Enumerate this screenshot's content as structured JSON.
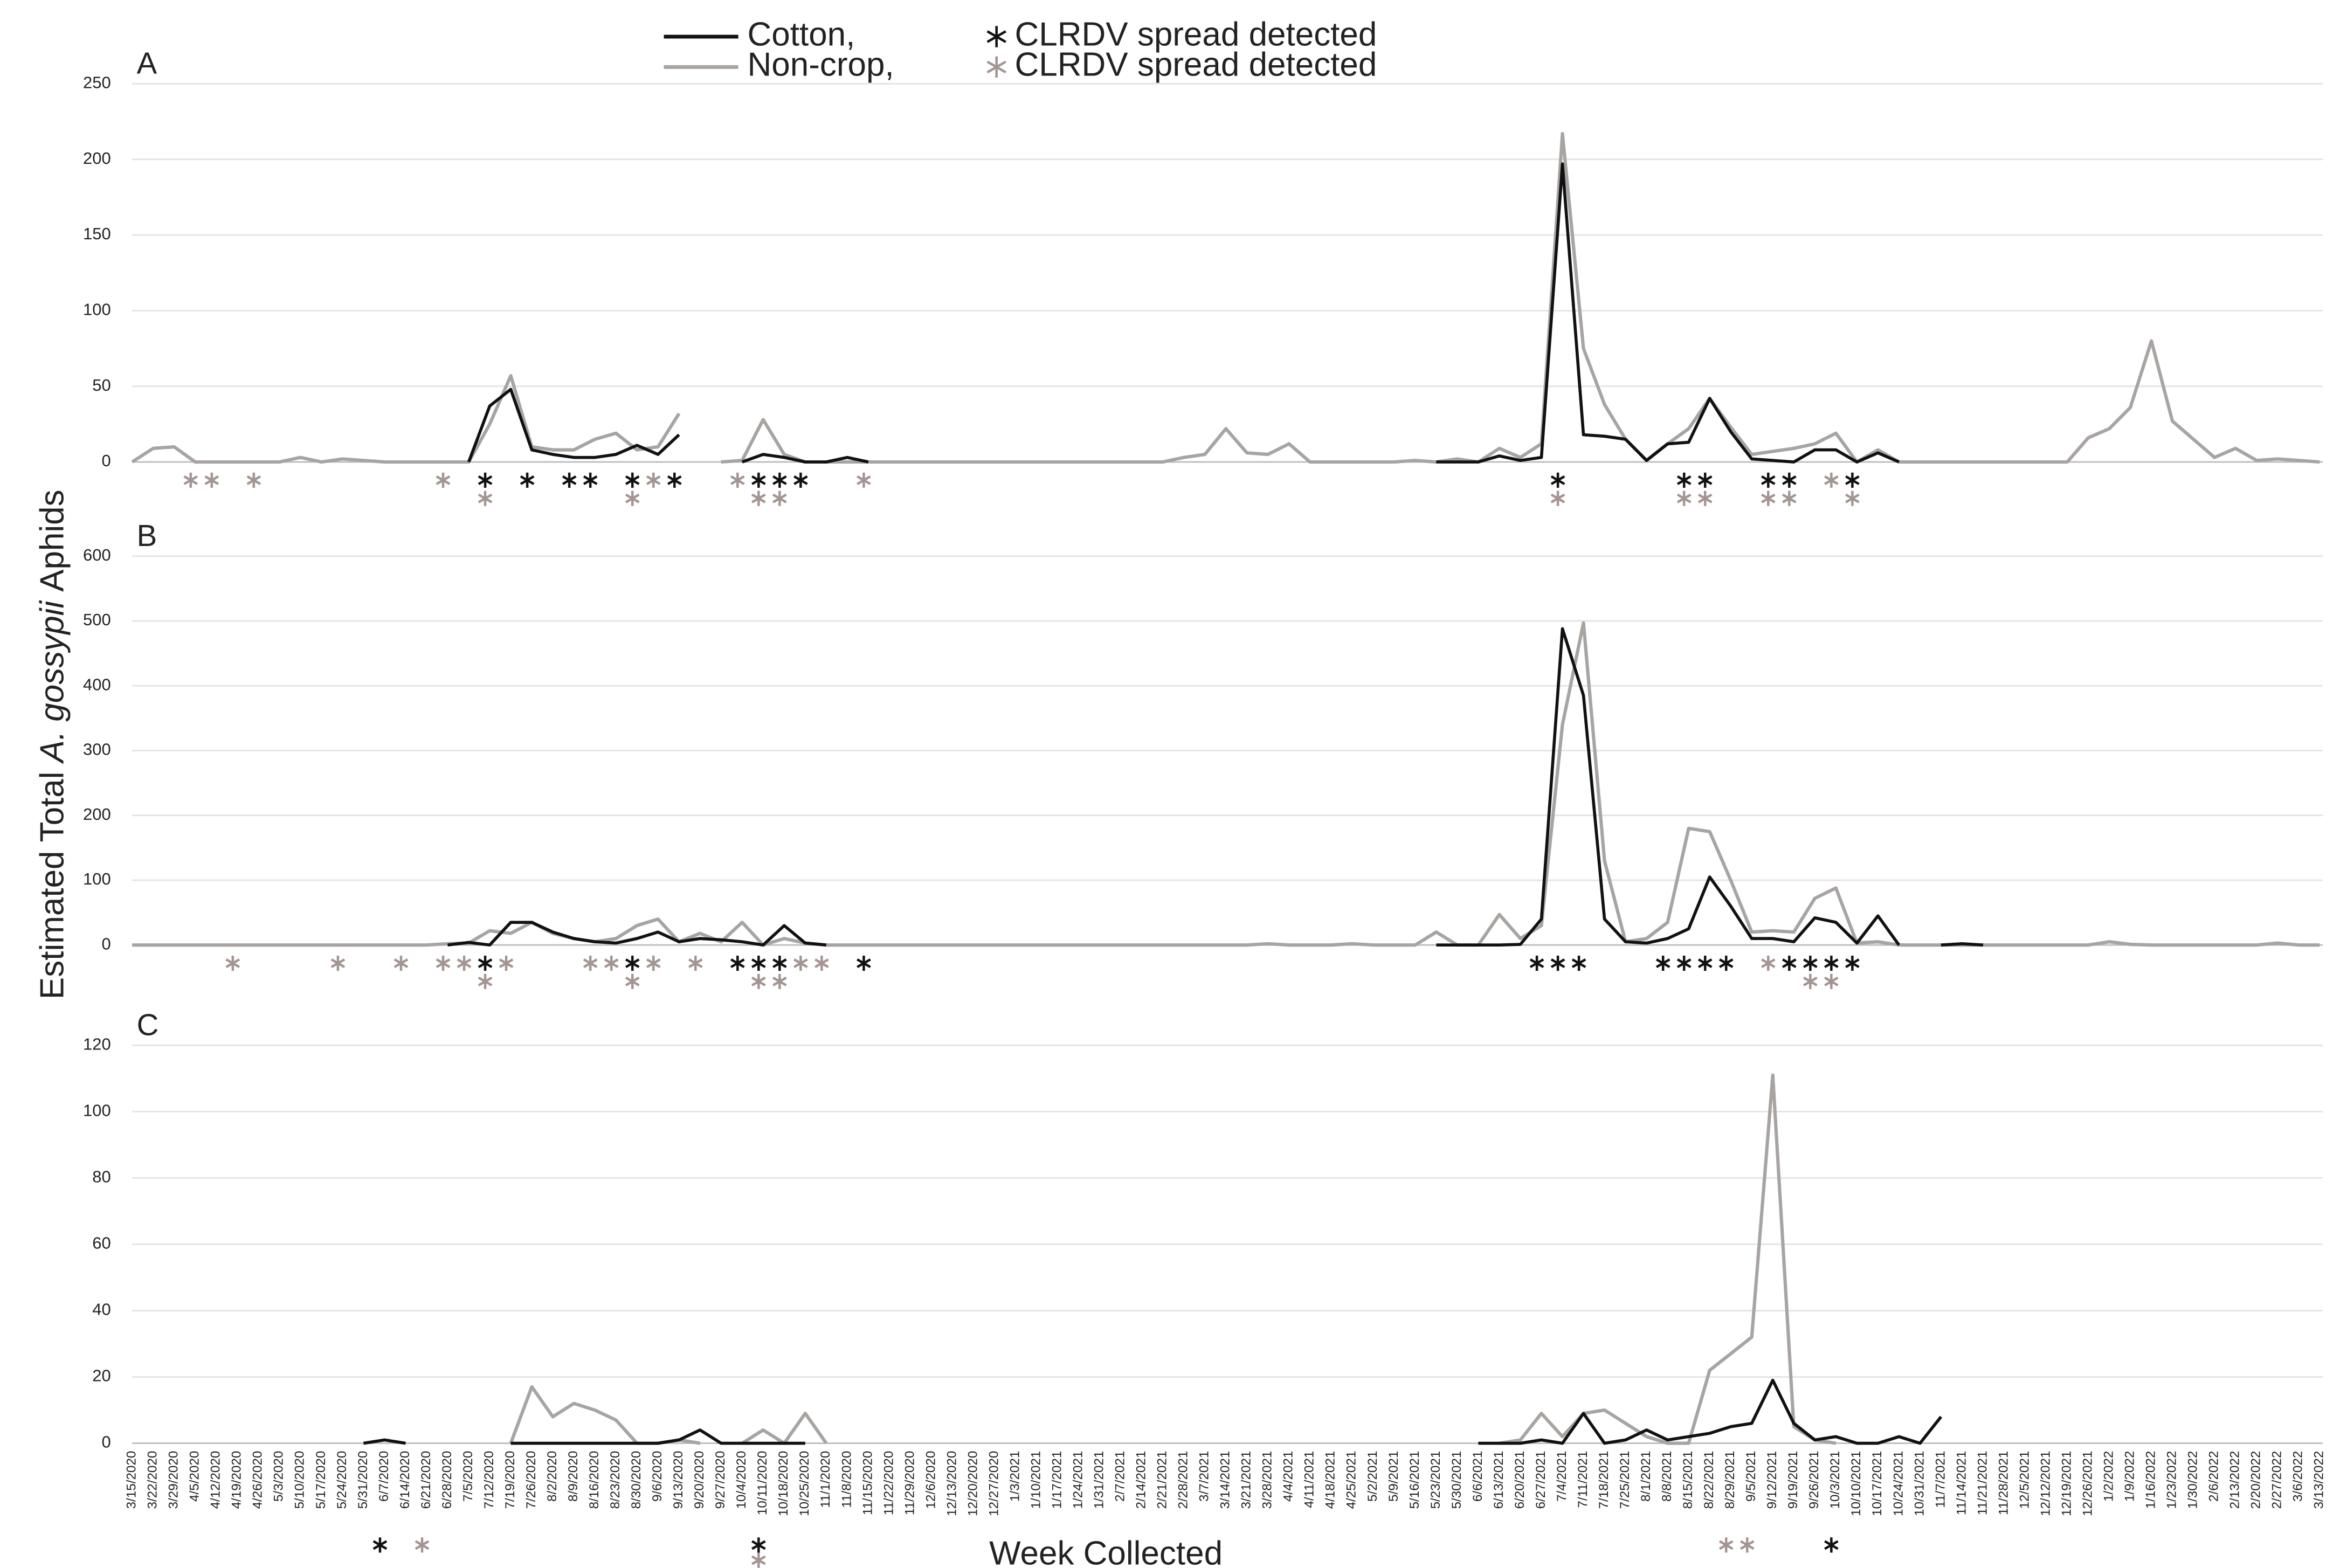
{
  "chart_data": {
    "type": "line",
    "xlabel": "Week Collected",
    "ylabel": [
      "Estimated Total",
      "A. gossypii",
      "Aphids"
    ],
    "spread_label": "CLRDV spread detected",
    "legend": [
      {
        "name": "Cotton,",
        "color": "#111111"
      },
      {
        "name": "Non-crop,",
        "color": "#a8a4a2"
      }
    ],
    "spread_colors": [
      "#111111",
      "#a39592"
    ],
    "grid": true,
    "categories": [
      "3/15/2020",
      "3/22/2020",
      "3/29/2020",
      "4/5/2020",
      "4/12/2020",
      "4/19/2020",
      "4/26/2020",
      "5/3/2020",
      "5/10/2020",
      "5/17/2020",
      "5/24/2020",
      "5/31/2020",
      "6/7/2020",
      "6/14/2020",
      "6/21/2020",
      "6/28/2020",
      "7/5/2020",
      "7/12/2020",
      "7/19/2020",
      "7/26/2020",
      "8/2/2020",
      "8/9/2020",
      "8/16/2020",
      "8/23/2020",
      "8/30/2020",
      "9/6/2020",
      "9/13/2020",
      "9/20/2020",
      "9/27/2020",
      "10/4/2020",
      "10/11/2020",
      "10/18/2020",
      "10/25/2020",
      "11/1/2020",
      "11/8/2020",
      "11/15/2020",
      "11/22/2020",
      "11/29/2020",
      "12/6/2020",
      "12/13/2020",
      "12/20/2020",
      "12/27/2020",
      "1/3/2021",
      "1/10/2021",
      "1/17/2021",
      "1/24/2021",
      "1/31/2021",
      "2/7/2021",
      "2/14/2021",
      "2/21/2021",
      "2/28/2021",
      "3/7/2021",
      "3/14/2021",
      "3/21/2021",
      "3/28/2021",
      "4/4/2021",
      "4/11/2021",
      "4/18/2021",
      "4/25/2021",
      "5/2/2021",
      "5/9/2021",
      "5/16/2021",
      "5/23/2021",
      "5/30/2021",
      "6/6/2021",
      "6/13/2021",
      "6/20/2021",
      "6/27/2021",
      "7/4/2021",
      "7/11/2021",
      "7/18/2021",
      "7/25/2021",
      "8/1/2021",
      "8/8/2021",
      "8/15/2021",
      "8/22/2021",
      "8/29/2021",
      "9/5/2021",
      "9/12/2021",
      "9/19/2021",
      "9/26/2021",
      "10/3/2021",
      "10/10/2021",
      "10/17/2021",
      "10/24/2021",
      "10/31/2021",
      "11/7/2021",
      "11/14/2021",
      "11/21/2021",
      "11/28/2021",
      "12/5/2021",
      "12/12/2021",
      "12/19/2021",
      "12/26/2021",
      "1/2/2022",
      "1/9/2022",
      "1/16/2022",
      "1/23/2022",
      "1/30/2022",
      "2/6/2022",
      "2/13/2022",
      "2/20/2022",
      "2/27/2022",
      "3/6/2022",
      "3/13/2022"
    ],
    "panels": [
      {
        "title": "A",
        "ylim": [
          0,
          250
        ],
        "yticks": [
          0,
          50,
          100,
          150,
          200,
          250
        ],
        "series": [
          {
            "values": [
              null,
              null,
              null,
              null,
              null,
              null,
              null,
              null,
              null,
              null,
              null,
              null,
              null,
              null,
              null,
              null,
              0,
              37,
              48,
              8,
              5,
              3,
              3,
              5,
              11,
              5,
              18,
              null,
              null,
              0,
              5,
              3,
              0,
              0,
              3,
              0,
              null,
              null,
              null,
              null,
              null,
              null,
              null,
              null,
              null,
              null,
              null,
              null,
              null,
              null,
              null,
              null,
              null,
              null,
              null,
              null,
              null,
              null,
              null,
              null,
              null,
              null,
              0,
              0,
              0,
              4,
              1,
              3,
              197,
              18,
              17,
              15,
              1,
              12,
              13,
              42,
              20,
              2,
              1,
              0,
              8,
              8,
              0,
              6,
              0,
              null,
              null,
              null,
              null,
              null,
              null,
              null,
              null,
              null,
              null,
              null,
              null,
              null,
              null,
              null,
              null,
              null,
              null,
              null,
              null
            ],
            "spread": [
              "7/12/2020",
              "7/26/2020",
              "8/9/2020",
              "8/16/2020",
              "8/30/2020",
              "9/13/2020",
              "10/11/2020",
              "10/18/2020",
              "10/25/2020",
              "7/4/2021",
              "8/15/2021",
              "8/22/2021",
              "9/12/2021",
              "9/19/2021",
              "10/10/2021"
            ]
          },
          {
            "values": [
              0,
              9,
              10,
              0,
              0,
              0,
              0,
              0,
              3,
              0,
              2,
              1,
              0,
              0,
              0,
              0,
              0,
              25,
              57,
              10,
              8,
              8,
              15,
              19,
              8,
              10,
              32,
              null,
              0,
              1,
              28,
              5,
              0,
              0,
              0,
              0,
              0,
              0,
              0,
              0,
              0,
              0,
              0,
              0,
              0,
              0,
              0,
              0,
              0,
              0,
              3,
              5,
              22,
              6,
              5,
              12,
              0,
              0,
              0,
              0,
              0,
              1,
              0,
              2,
              0,
              9,
              3,
              12,
              217,
              75,
              38,
              15,
              1,
              12,
              22,
              42,
              23,
              5,
              7,
              9,
              12,
              19,
              0,
              8,
              0,
              0,
              0,
              0,
              0,
              0,
              0,
              0,
              0,
              16,
              22,
              36,
              80,
              27,
              15,
              3,
              9,
              1,
              2,
              1,
              0
            ],
            "spread": [
              "4/5/2020",
              "4/12/2020",
              "4/26/2020",
              "6/28/2020",
              "7/12/2020",
              "8/30/2020",
              "9/6/2020",
              "10/4/2020",
              "10/11/2020",
              "10/18/2020",
              "11/15/2020",
              "7/4/2021",
              "8/15/2021",
              "8/22/2021",
              "9/12/2021",
              "9/19/2021",
              "10/3/2021",
              "10/10/2021"
            ]
          }
        ]
      },
      {
        "title": "B",
        "ylim": [
          0,
          600
        ],
        "yticks": [
          0,
          100,
          200,
          300,
          400,
          500,
          600
        ],
        "series": [
          {
            "values": [
              null,
              null,
              null,
              null,
              null,
              null,
              null,
              null,
              null,
              null,
              null,
              null,
              null,
              null,
              null,
              0,
              4,
              0,
              35,
              35,
              20,
              10,
              5,
              3,
              10,
              20,
              5,
              10,
              8,
              5,
              0,
              30,
              3,
              0,
              null,
              null,
              null,
              null,
              null,
              null,
              null,
              null,
              null,
              null,
              null,
              null,
              null,
              null,
              null,
              null,
              null,
              null,
              null,
              null,
              null,
              null,
              null,
              null,
              null,
              null,
              null,
              null,
              0,
              0,
              0,
              0,
              1,
              40,
              488,
              385,
              40,
              5,
              3,
              10,
              25,
              105,
              60,
              10,
              10,
              5,
              42,
              35,
              3,
              45,
              0,
              null,
              0,
              2,
              0,
              null,
              null,
              null,
              null,
              null,
              null,
              null,
              null,
              null,
              null,
              null,
              null,
              null,
              null,
              null,
              null
            ],
            "spread": [
              "7/12/2020",
              "8/30/2020",
              "10/4/2020",
              "10/11/2020",
              "10/18/2020",
              "11/15/2020",
              "6/27/2021",
              "7/4/2021",
              "7/11/2021",
              "8/8/2021",
              "8/15/2021",
              "8/22/2021",
              "8/29/2021",
              "9/19/2021",
              "9/26/2021",
              "10/3/2021",
              "10/10/2021"
            ]
          },
          {
            "values": [
              0,
              0,
              0,
              0,
              0,
              0,
              0,
              0,
              0,
              0,
              0,
              0,
              0,
              0,
              0,
              2,
              3,
              22,
              18,
              35,
              18,
              10,
              5,
              10,
              30,
              40,
              5,
              18,
              5,
              35,
              0,
              10,
              3,
              0,
              0,
              0,
              0,
              0,
              0,
              0,
              0,
              0,
              0,
              0,
              0,
              0,
              0,
              0,
              0,
              0,
              0,
              0,
              0,
              0,
              2,
              0,
              0,
              0,
              2,
              0,
              0,
              0,
              20,
              0,
              0,
              47,
              10,
              30,
              340,
              497,
              130,
              5,
              10,
              35,
              180,
              175,
              100,
              20,
              22,
              20,
              72,
              88,
              3,
              5,
              0,
              0,
              0,
              0,
              0,
              0,
              0,
              0,
              0,
              0,
              5,
              1,
              0,
              0,
              0,
              0,
              0,
              0,
              3,
              0,
              0
            ],
            "spread": [
              "4/19/2020",
              "5/24/2020",
              "6/14/2020",
              "6/28/2020",
              "7/5/2020",
              "7/12/2020",
              "7/19/2020",
              "8/16/2020",
              "8/23/2020",
              "8/30/2020",
              "9/6/2020",
              "9/20/2020",
              "10/11/2020",
              "10/18/2020",
              "10/25/2020",
              "11/1/2020",
              "9/12/2021",
              "9/26/2021",
              "10/3/2021"
            ]
          }
        ]
      },
      {
        "title": "C",
        "ylim": [
          0,
          120
        ],
        "yticks": [
          0,
          20,
          40,
          60,
          80,
          100,
          120
        ],
        "series": [
          {
            "values": [
              null,
              null,
              null,
              null,
              null,
              null,
              null,
              null,
              null,
              null,
              null,
              0,
              1,
              0,
              null,
              null,
              null,
              null,
              0,
              0,
              0,
              0,
              0,
              0,
              0,
              0,
              1,
              4,
              0,
              0,
              0,
              0,
              0,
              null,
              null,
              null,
              null,
              null,
              null,
              null,
              null,
              null,
              null,
              null,
              null,
              null,
              null,
              null,
              null,
              null,
              null,
              null,
              null,
              null,
              null,
              null,
              null,
              null,
              null,
              null,
              null,
              null,
              null,
              null,
              0,
              0,
              0,
              1,
              0,
              9,
              0,
              1,
              4,
              1,
              2,
              3,
              5,
              6,
              19,
              6,
              1,
              2,
              0,
              0,
              2,
              0,
              8,
              null,
              null,
              null,
              null,
              null,
              null,
              null,
              null,
              null,
              null,
              null,
              null,
              null,
              null,
              null,
              null,
              null,
              null
            ],
            "spread": [
              "6/7/2020",
              "10/11/2020",
              "10/3/2021"
            ]
          },
          {
            "values": [
              null,
              null,
              null,
              null,
              null,
              null,
              null,
              null,
              null,
              null,
              null,
              null,
              null,
              null,
              null,
              null,
              null,
              null,
              0,
              17,
              8,
              12,
              10,
              7,
              0,
              0,
              1,
              0,
              null,
              0,
              4,
              0,
              9,
              0,
              null,
              null,
              null,
              null,
              null,
              null,
              null,
              null,
              null,
              null,
              null,
              null,
              null,
              null,
              null,
              null,
              null,
              null,
              null,
              null,
              null,
              null,
              null,
              null,
              null,
              null,
              null,
              null,
              null,
              null,
              null,
              0,
              1,
              9,
              2,
              9,
              10,
              6,
              2,
              0,
              0,
              22,
              27,
              32,
              111,
              5,
              1,
              0,
              null,
              null,
              null,
              null,
              null,
              null,
              null,
              null,
              null,
              null,
              null,
              null,
              null,
              null,
              null,
              null,
              null,
              null,
              null,
              null,
              null,
              null,
              null
            ],
            "spread": [
              "6/21/2020",
              "10/11/2020",
              "8/29/2021",
              "9/5/2021"
            ]
          }
        ]
      }
    ]
  }
}
